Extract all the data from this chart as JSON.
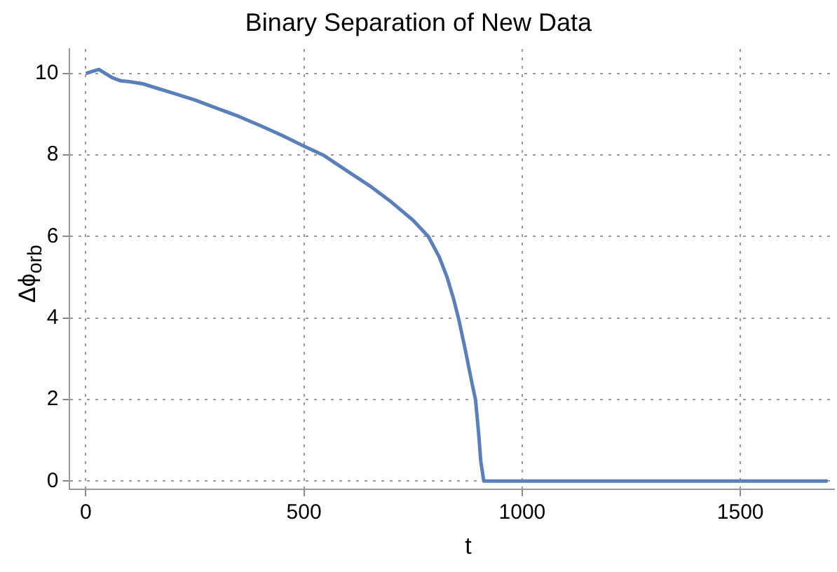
{
  "chart_data": {
    "type": "line",
    "title": "Binary Separation of New Data",
    "xlabel": "t",
    "ylabel": "Δϕ$_{orb}$",
    "series": [
      {
        "color": "#5b7fb8",
        "x": [
          0,
          15,
          30,
          45,
          60,
          80,
          100,
          130,
          160,
          200,
          250,
          300,
          350,
          400,
          450,
          500,
          544,
          600,
          650,
          700,
          750,
          785,
          810,
          828,
          842,
          854,
          870,
          885,
          893,
          900,
          905,
          912,
          950,
          1000,
          1200,
          1500,
          1700
        ],
        "values": [
          10.0,
          10.05,
          10.1,
          10.0,
          9.9,
          9.82,
          9.8,
          9.75,
          9.65,
          9.52,
          9.35,
          9.15,
          8.95,
          8.72,
          8.48,
          8.22,
          8.0,
          7.6,
          7.25,
          6.85,
          6.4,
          6.0,
          5.5,
          5.0,
          4.5,
          4.0,
          3.2,
          2.4,
          2.0,
          1.2,
          0.5,
          0.0,
          0.0,
          0.0,
          0.0,
          0.0,
          0.0
        ]
      }
    ],
    "xlim": [
      -37,
      1715
    ],
    "ylim": [
      -0.2,
      10.6
    ],
    "xticks": [
      0,
      500,
      1000,
      1500
    ],
    "yticks": [
      0,
      2,
      4,
      6,
      8,
      10
    ],
    "grid": true,
    "marker": "none",
    "line_style": "solid"
  }
}
